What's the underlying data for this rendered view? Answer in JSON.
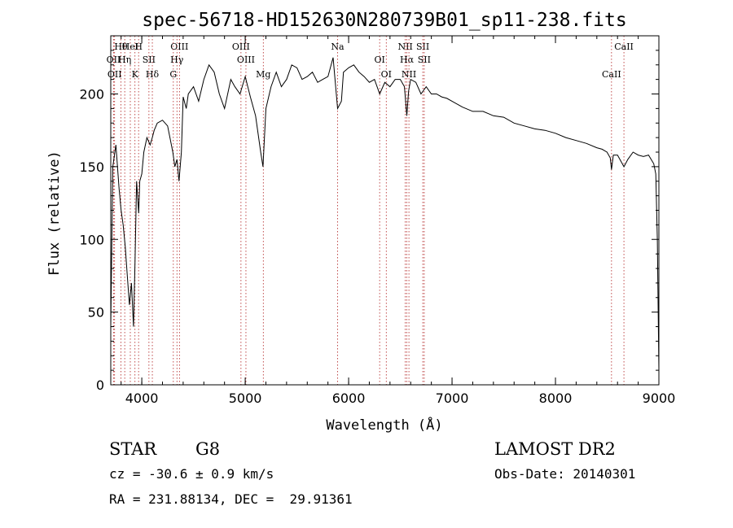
{
  "chart_data": {
    "type": "line",
    "title": "spec-56718-HD152630N280739B01_sp11-238.fits",
    "xlabel": "Wavelength (Å)",
    "ylabel": "Flux (relative)",
    "xlim": [
      3700,
      9000
    ],
    "ylim": [
      0,
      240
    ],
    "xticks": [
      4000,
      5000,
      6000,
      7000,
      8000,
      9000
    ],
    "yticks": [
      0,
      50,
      100,
      150,
      200
    ],
    "grid": false,
    "series": [
      {
        "x": [
          3700,
          3720,
          3750,
          3780,
          3800,
          3820,
          3840,
          3860,
          3880,
          3900,
          3920,
          3935,
          3950,
          3970,
          3980,
          4000,
          4020,
          4050,
          4080,
          4102,
          4120,
          4150,
          4200,
          4250,
          4300,
          4320,
          4340,
          4360,
          4383,
          4400,
          4430,
          4450,
          4500,
          4550,
          4600,
          4650,
          4700,
          4750,
          4800,
          4861,
          4900,
          4950,
          5000,
          5050,
          5100,
          5150,
          5172,
          5200,
          5250,
          5300,
          5350,
          5400,
          5450,
          5500,
          5550,
          5600,
          5650,
          5700,
          5750,
          5800,
          5850,
          5893,
          5930,
          5950,
          6000,
          6050,
          6100,
          6150,
          6200,
          6250,
          6300,
          6350,
          6400,
          6450,
          6500,
          6540,
          6563,
          6580,
          6600,
          6650,
          6700,
          6750,
          6800,
          6850,
          6900,
          6950,
          7000,
          7100,
          7200,
          7300,
          7400,
          7500,
          7600,
          7700,
          7800,
          7900,
          8000,
          8100,
          8200,
          8300,
          8400,
          8450,
          8498,
          8530,
          8542,
          8560,
          8600,
          8662,
          8700,
          8750,
          8800,
          8850,
          8900,
          8950,
          8970,
          8985,
          9000
        ],
        "values": [
          40,
          150,
          165,
          135,
          120,
          110,
          95,
          75,
          55,
          70,
          40,
          85,
          140,
          118,
          140,
          145,
          160,
          170,
          165,
          170,
          175,
          180,
          182,
          178,
          160,
          150,
          155,
          140,
          160,
          198,
          190,
          200,
          205,
          195,
          210,
          220,
          215,
          200,
          190,
          210,
          205,
          200,
          212,
          198,
          185,
          160,
          150,
          190,
          205,
          215,
          205,
          210,
          220,
          218,
          210,
          212,
          215,
          208,
          210,
          212,
          225,
          190,
          195,
          215,
          218,
          220,
          215,
          212,
          208,
          210,
          200,
          208,
          205,
          210,
          210,
          205,
          185,
          202,
          210,
          208,
          200,
          205,
          200,
          200,
          198,
          197,
          195,
          191,
          188,
          188,
          185,
          184,
          180,
          178,
          176,
          175,
          173,
          170,
          168,
          166,
          163,
          162,
          160,
          156,
          148,
          158,
          158,
          150,
          155,
          160,
          158,
          157,
          158,
          152,
          145,
          100,
          10
        ],
        "color": "#000000"
      }
    ],
    "lines": [
      {
        "label": "Hθ",
        "x": 3798
      },
      {
        "label": "OII",
        "x": 3727
      },
      {
        "label": "OII",
        "x": 3737
      },
      {
        "label": "HeI",
        "x": 3889
      },
      {
        "label": "Hη",
        "x": 3835
      },
      {
        "label": "K",
        "x": 3934
      },
      {
        "label": "H",
        "x": 3969
      },
      {
        "label": "SII",
        "x": 4069
      },
      {
        "label": "Hδ",
        "x": 4102
      },
      {
        "label": "OIII",
        "x": 4364
      },
      {
        "label": "Hγ",
        "x": 4340
      },
      {
        "label": "G",
        "x": 4305
      },
      {
        "label": "OIII",
        "x": 4959
      },
      {
        "label": "OIII",
        "x": 5007
      },
      {
        "label": "Mg",
        "x": 5175
      },
      {
        "label": "Na",
        "x": 5893
      },
      {
        "label": "OI",
        "x": 6300
      },
      {
        "label": "OI",
        "x": 6364
      },
      {
        "label": "NII",
        "x": 6548
      },
      {
        "label": "Hα",
        "x": 6563
      },
      {
        "label": "NII",
        "x": 6583
      },
      {
        "label": "SII",
        "x": 6717
      },
      {
        "label": "SII",
        "x": 6731
      },
      {
        "label": "CaII",
        "x": 8542
      },
      {
        "label": "CaII",
        "x": 8662
      }
    ]
  },
  "info": {
    "object_type": "STAR",
    "subclass": "G8",
    "cz": "cz = -30.6 ± 0.9 km/s",
    "coords": "RA = 231.88134, DEC =  29.91361",
    "survey": "LAMOST DR2",
    "obs_date": "Obs-Date: 20140301"
  }
}
